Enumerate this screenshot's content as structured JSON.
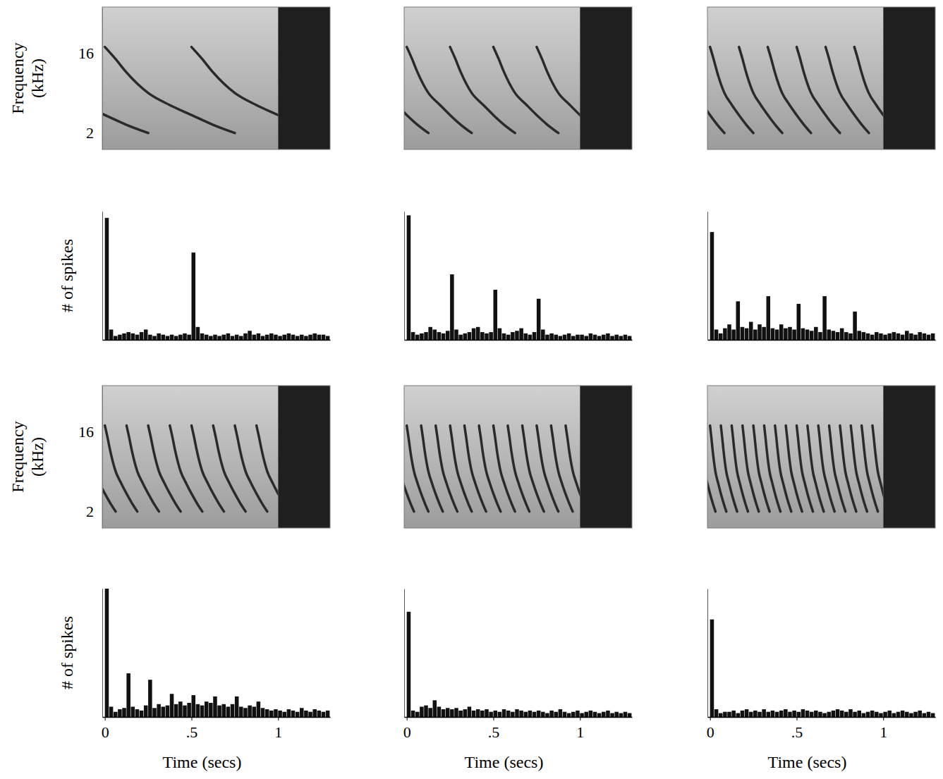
{
  "chart_data": [
    {
      "type": "spectrogram",
      "xlim": [
        -0.015,
        1.3
      ],
      "ylim": [
        1.3,
        54
      ],
      "log": "y",
      "yticks": [
        2,
        16
      ],
      "tick_labels": "y",
      "ylabel": "Frequency (kHz)",
      "color": "#2a2a2a",
      "silence": [
        1,
        1.3
      ],
      "sweep_t": [
        0,
        0.06,
        0.12,
        0.25,
        0.37,
        0.5,
        0.62,
        0.75
      ],
      "sweep_f": [
        19,
        14,
        10,
        5.7,
        4.2,
        3.2,
        2.5,
        2.0
      ],
      "onsets": [
        -0.5,
        0,
        0.5
      ]
    },
    {
      "type": "histogram",
      "xlim": [
        -0.015,
        1.3
      ],
      "ylim": [
        0,
        100
      ],
      "yticks": [],
      "tick_labels": false,
      "ylabel": "# of spikes",
      "color": "#111111",
      "bins": [
        0,
        0.025,
        0.05,
        0.075,
        0.1,
        0.125,
        0.15,
        0.175,
        0.2,
        0.225,
        0.25,
        0.275,
        0.3,
        0.325,
        0.35,
        0.375,
        0.4,
        0.425,
        0.45,
        0.475,
        0.5,
        0.525,
        0.55,
        0.575,
        0.6,
        0.625,
        0.65,
        0.675,
        0.7,
        0.725,
        0.75,
        0.775,
        0.8,
        0.825,
        0.85,
        0.875,
        0.9,
        0.925,
        0.95,
        0.975,
        1,
        1.025,
        1.05,
        1.075,
        1.1,
        1.125,
        1.15,
        1.175,
        1.2,
        1.225,
        1.25,
        1.275,
        1.3
      ],
      "values": [
        95,
        8,
        3,
        4,
        5,
        6,
        5,
        4,
        6,
        8,
        4,
        3,
        5,
        4,
        3,
        4,
        3,
        4,
        5,
        4,
        68,
        10,
        5,
        4,
        3,
        4,
        3,
        4,
        5,
        3,
        4,
        3,
        5,
        7,
        4,
        5,
        3,
        4,
        5,
        4,
        3,
        4,
        5,
        4,
        3,
        4,
        3,
        4,
        5,
        4,
        4,
        3
      ]
    },
    {
      "type": "spectrogram",
      "xlim": [
        -0.015,
        1.3
      ],
      "ylim": [
        1.3,
        54
      ],
      "log": "y",
      "tick_labels": false,
      "color": "#2a2a2a",
      "silence": [
        1,
        1.3
      ],
      "sweep_t": [
        0,
        0.03,
        0.06,
        0.125,
        0.19,
        0.25,
        0.31,
        0.375
      ],
      "sweep_f": [
        19,
        14,
        10,
        5.7,
        4.2,
        3.2,
        2.5,
        2.0
      ],
      "onsets": [
        -0.25,
        0,
        0.25,
        0.5,
        0.75
      ]
    },
    {
      "type": "histogram",
      "xlim": [
        -0.015,
        1.3
      ],
      "ylim": [
        0,
        100
      ],
      "yticks": [],
      "tick_labels": false,
      "color": "#111111",
      "bins": [
        0,
        0.025,
        0.05,
        0.075,
        0.1,
        0.125,
        0.15,
        0.175,
        0.2,
        0.225,
        0.25,
        0.275,
        0.3,
        0.325,
        0.35,
        0.375,
        0.4,
        0.425,
        0.45,
        0.475,
        0.5,
        0.525,
        0.55,
        0.575,
        0.6,
        0.625,
        0.65,
        0.675,
        0.7,
        0.725,
        0.75,
        0.775,
        0.8,
        0.825,
        0.85,
        0.875,
        0.9,
        0.925,
        0.95,
        0.975,
        1,
        1.025,
        1.05,
        1.075,
        1.1,
        1.125,
        1.15,
        1.175,
        1.2,
        1.225,
        1.25,
        1.275,
        1.3
      ],
      "values": [
        97,
        6,
        4,
        5,
        6,
        10,
        8,
        6,
        5,
        7,
        51,
        8,
        4,
        5,
        6,
        9,
        10,
        6,
        5,
        6,
        39,
        9,
        5,
        4,
        6,
        7,
        9,
        5,
        4,
        6,
        32,
        8,
        4,
        5,
        4,
        3,
        4,
        5,
        3,
        4,
        4,
        3,
        5,
        4,
        3,
        4,
        5,
        3,
        4,
        3,
        4,
        3
      ]
    },
    {
      "type": "spectrogram",
      "xlim": [
        -0.015,
        1.3
      ],
      "ylim": [
        1.3,
        54
      ],
      "log": "y",
      "tick_labels": false,
      "color": "#2a2a2a",
      "silence": [
        1,
        1.3
      ],
      "sweep_t": [
        0,
        0.02,
        0.04,
        0.083,
        0.125,
        0.167,
        0.208,
        0.25
      ],
      "sweep_f": [
        19,
        14,
        10,
        5.7,
        4.2,
        3.2,
        2.5,
        2.0
      ],
      "onsets": [
        -0.167,
        0,
        0.167,
        0.333,
        0.5,
        0.667,
        0.833
      ]
    },
    {
      "type": "histogram",
      "xlim": [
        -0.015,
        1.3
      ],
      "ylim": [
        0,
        100
      ],
      "yticks": [],
      "tick_labels": false,
      "color": "#111111",
      "bins": [
        0,
        0.025,
        0.05,
        0.075,
        0.1,
        0.125,
        0.15,
        0.175,
        0.2,
        0.225,
        0.25,
        0.275,
        0.3,
        0.325,
        0.35,
        0.375,
        0.4,
        0.425,
        0.45,
        0.475,
        0.5,
        0.525,
        0.55,
        0.575,
        0.6,
        0.625,
        0.65,
        0.675,
        0.7,
        0.725,
        0.75,
        0.775,
        0.8,
        0.825,
        0.85,
        0.875,
        0.9,
        0.925,
        0.95,
        0.975,
        1,
        1.025,
        1.05,
        1.075,
        1.1,
        1.125,
        1.15,
        1.175,
        1.2,
        1.225,
        1.25,
        1.275,
        1.3
      ],
      "values": [
        84,
        8,
        5,
        9,
        12,
        8,
        30,
        10,
        9,
        14,
        8,
        12,
        10,
        34,
        9,
        8,
        12,
        9,
        10,
        8,
        28,
        9,
        8,
        7,
        10,
        6,
        34,
        8,
        7,
        6,
        9,
        6,
        5,
        22,
        7,
        6,
        5,
        4,
        6,
        5,
        4,
        5,
        6,
        5,
        4,
        7,
        5,
        4,
        6,
        5,
        4,
        5
      ]
    },
    {
      "type": "spectrogram",
      "xlim": [
        -0.015,
        1.3
      ],
      "ylim": [
        1.3,
        54
      ],
      "log": "y",
      "yticks": [
        2,
        16
      ],
      "tick_labels": "y",
      "ylabel": "Frequency (kHz)",
      "color": "#2a2a2a",
      "silence": [
        1,
        1.3
      ],
      "sweep_t": [
        0,
        0.015,
        0.03,
        0.0625,
        0.094,
        0.125,
        0.156,
        0.1875
      ],
      "sweep_f": [
        19,
        14,
        10,
        5.7,
        4.2,
        3.2,
        2.5,
        2.0
      ],
      "onsets": [
        -0.125,
        0,
        0.125,
        0.25,
        0.375,
        0.5,
        0.625,
        0.75,
        0.875
      ]
    },
    {
      "type": "histogram",
      "xlim": [
        -0.015,
        1.3
      ],
      "ylim": [
        0,
        100
      ],
      "yticks": [],
      "xticks": [
        0,
        {
          "value": 0.5,
          "label": ".5"
        },
        1
      ],
      "tick_labels": "x",
      "xlabel": "Time (secs)",
      "ylabel": "# of spikes",
      "color": "#111111",
      "bins": [
        0,
        0.025,
        0.05,
        0.075,
        0.1,
        0.125,
        0.15,
        0.175,
        0.2,
        0.225,
        0.25,
        0.275,
        0.3,
        0.325,
        0.35,
        0.375,
        0.4,
        0.425,
        0.45,
        0.475,
        0.5,
        0.525,
        0.55,
        0.575,
        0.6,
        0.625,
        0.65,
        0.675,
        0.7,
        0.725,
        0.75,
        0.775,
        0.8,
        0.825,
        0.85,
        0.875,
        0.9,
        0.925,
        0.95,
        0.975,
        1,
        1.025,
        1.05,
        1.075,
        1.1,
        1.125,
        1.15,
        1.175,
        1.2,
        1.225,
        1.25,
        1.275,
        1.3
      ],
      "values": [
        100,
        8,
        4,
        6,
        7,
        34,
        8,
        6,
        5,
        9,
        29,
        7,
        10,
        8,
        9,
        18,
        10,
        12,
        9,
        11,
        17,
        10,
        9,
        12,
        11,
        16,
        9,
        10,
        8,
        10,
        16,
        8,
        7,
        9,
        8,
        12,
        7,
        6,
        5,
        6,
        5,
        4,
        6,
        5,
        4,
        7,
        5,
        4,
        6,
        5,
        4,
        5
      ]
    },
    {
      "type": "spectrogram",
      "xlim": [
        -0.015,
        1.3
      ],
      "ylim": [
        1.3,
        54
      ],
      "log": "y",
      "tick_labels": false,
      "color": "#2a2a2a",
      "silence": [
        1,
        1.3
      ],
      "sweep_t": [
        0,
        0.01,
        0.02,
        0.042,
        0.0625,
        0.083,
        0.104,
        0.125
      ],
      "sweep_f": [
        19,
        14,
        10,
        5.7,
        4.2,
        3.2,
        2.5,
        2.0
      ],
      "onsets": [
        -0.083,
        0,
        0.083,
        0.167,
        0.25,
        0.333,
        0.417,
        0.5,
        0.583,
        0.667,
        0.75,
        0.833,
        0.917
      ]
    },
    {
      "type": "histogram",
      "xlim": [
        -0.015,
        1.3
      ],
      "ylim": [
        0,
        100
      ],
      "yticks": [],
      "xticks": [
        0,
        {
          "value": 0.5,
          "label": ".5"
        },
        1
      ],
      "tick_labels": "x",
      "xlabel": "Time (secs)",
      "color": "#111111",
      "bins": [
        0,
        0.025,
        0.05,
        0.075,
        0.1,
        0.125,
        0.15,
        0.175,
        0.2,
        0.225,
        0.25,
        0.275,
        0.3,
        0.325,
        0.35,
        0.375,
        0.4,
        0.425,
        0.45,
        0.475,
        0.5,
        0.525,
        0.55,
        0.575,
        0.6,
        0.625,
        0.65,
        0.675,
        0.7,
        0.725,
        0.75,
        0.775,
        0.8,
        0.825,
        0.85,
        0.875,
        0.9,
        0.925,
        0.95,
        0.975,
        1,
        1.025,
        1.05,
        1.075,
        1.1,
        1.125,
        1.15,
        1.175,
        1.2,
        1.225,
        1.25,
        1.275,
        1.3
      ],
      "values": [
        82,
        5,
        4,
        8,
        9,
        7,
        13,
        8,
        6,
        7,
        6,
        7,
        5,
        6,
        8,
        5,
        6,
        5,
        6,
        4,
        5,
        4,
        6,
        5,
        4,
        6,
        5,
        4,
        5,
        4,
        5,
        4,
        3,
        5,
        4,
        6,
        4,
        3,
        4,
        5,
        3,
        4,
        5,
        4,
        3,
        4,
        5,
        3,
        4,
        3,
        4,
        3
      ]
    },
    {
      "type": "spectrogram",
      "xlim": [
        -0.015,
        1.3
      ],
      "ylim": [
        1.3,
        54
      ],
      "log": "y",
      "tick_labels": false,
      "color": "#2a2a2a",
      "silence": [
        1,
        1.3
      ],
      "sweep_t": [
        0,
        0.0075,
        0.015,
        0.031,
        0.047,
        0.0625,
        0.078,
        0.094
      ],
      "sweep_f": [
        19,
        14,
        10,
        5.7,
        4.2,
        3.2,
        2.5,
        2.0
      ],
      "onsets": [
        -0.0625,
        0,
        0.0625,
        0.125,
        0.1875,
        0.25,
        0.3125,
        0.375,
        0.4375,
        0.5,
        0.5625,
        0.625,
        0.6875,
        0.75,
        0.8125,
        0.875,
        0.9375
      ]
    },
    {
      "type": "histogram",
      "xlim": [
        -0.015,
        1.3
      ],
      "ylim": [
        0,
        100
      ],
      "yticks": [],
      "xticks": [
        0,
        {
          "value": 0.5,
          "label": ".5"
        },
        1
      ],
      "tick_labels": "x",
      "xlabel": "Time (secs)",
      "color": "#111111",
      "bins": [
        0,
        0.025,
        0.05,
        0.075,
        0.1,
        0.125,
        0.15,
        0.175,
        0.2,
        0.225,
        0.25,
        0.275,
        0.3,
        0.325,
        0.35,
        0.375,
        0.4,
        0.425,
        0.45,
        0.475,
        0.5,
        0.525,
        0.55,
        0.575,
        0.6,
        0.625,
        0.65,
        0.675,
        0.7,
        0.725,
        0.75,
        0.775,
        0.8,
        0.825,
        0.85,
        0.875,
        0.9,
        0.925,
        0.95,
        0.975,
        1,
        1.025,
        1.05,
        1.075,
        1.1,
        1.125,
        1.15,
        1.175,
        1.2,
        1.225,
        1.25,
        1.275,
        1.3
      ],
      "values": [
        76,
        6,
        3,
        4,
        4,
        5,
        3,
        5,
        6,
        4,
        5,
        4,
        6,
        4,
        5,
        4,
        5,
        6,
        4,
        5,
        4,
        6,
        5,
        4,
        5,
        4,
        3,
        4,
        5,
        6,
        5,
        4,
        6,
        4,
        5,
        3,
        4,
        5,
        4,
        3,
        4,
        5,
        3,
        4,
        5,
        4,
        3,
        4,
        5,
        3,
        4,
        3
      ]
    }
  ]
}
